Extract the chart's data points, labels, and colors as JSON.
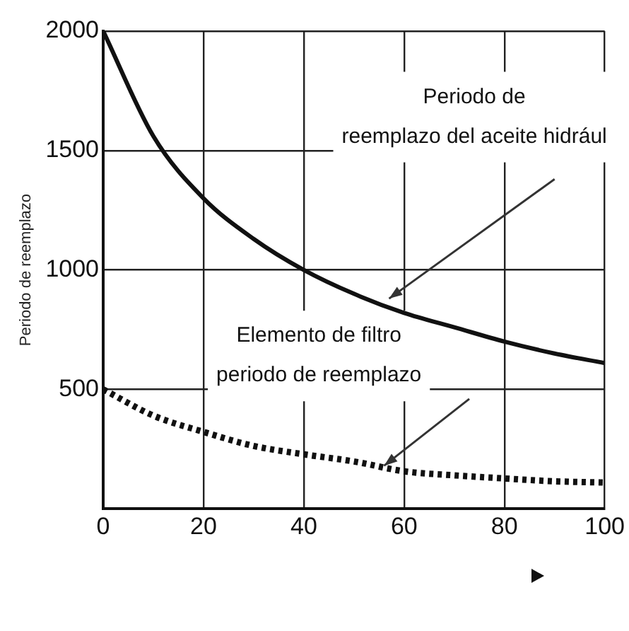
{
  "chart_data": {
    "type": "line",
    "ylabel": "Periodo de reemplazo",
    "x": [
      0,
      10,
      20,
      30,
      40,
      50,
      60,
      70,
      80,
      90,
      100
    ],
    "series": [
      {
        "color": "#111111",
        "line_style": "solid",
        "values": [
          2000,
          1560,
          1300,
          1130,
          1000,
          900,
          820,
          760,
          700,
          650,
          610
        ]
      },
      {
        "color": "#111111",
        "line_style": "dotted",
        "values": [
          500,
          390,
          322,
          263,
          228,
          198,
          157,
          140,
          127,
          115,
          110
        ]
      }
    ],
    "annotations": [
      "Periodo de\nreemplazo del aceite hidrául",
      "Elemento de filtro\nperiodo de reemplazo"
    ],
    "xlim": [
      0,
      100
    ],
    "xticks": [
      0,
      20,
      40,
      60,
      80,
      100
    ],
    "ylim": [
      0,
      2000
    ],
    "yticks": [
      500,
      1000,
      1500,
      2000
    ],
    "grid": true,
    "marker": "none"
  }
}
